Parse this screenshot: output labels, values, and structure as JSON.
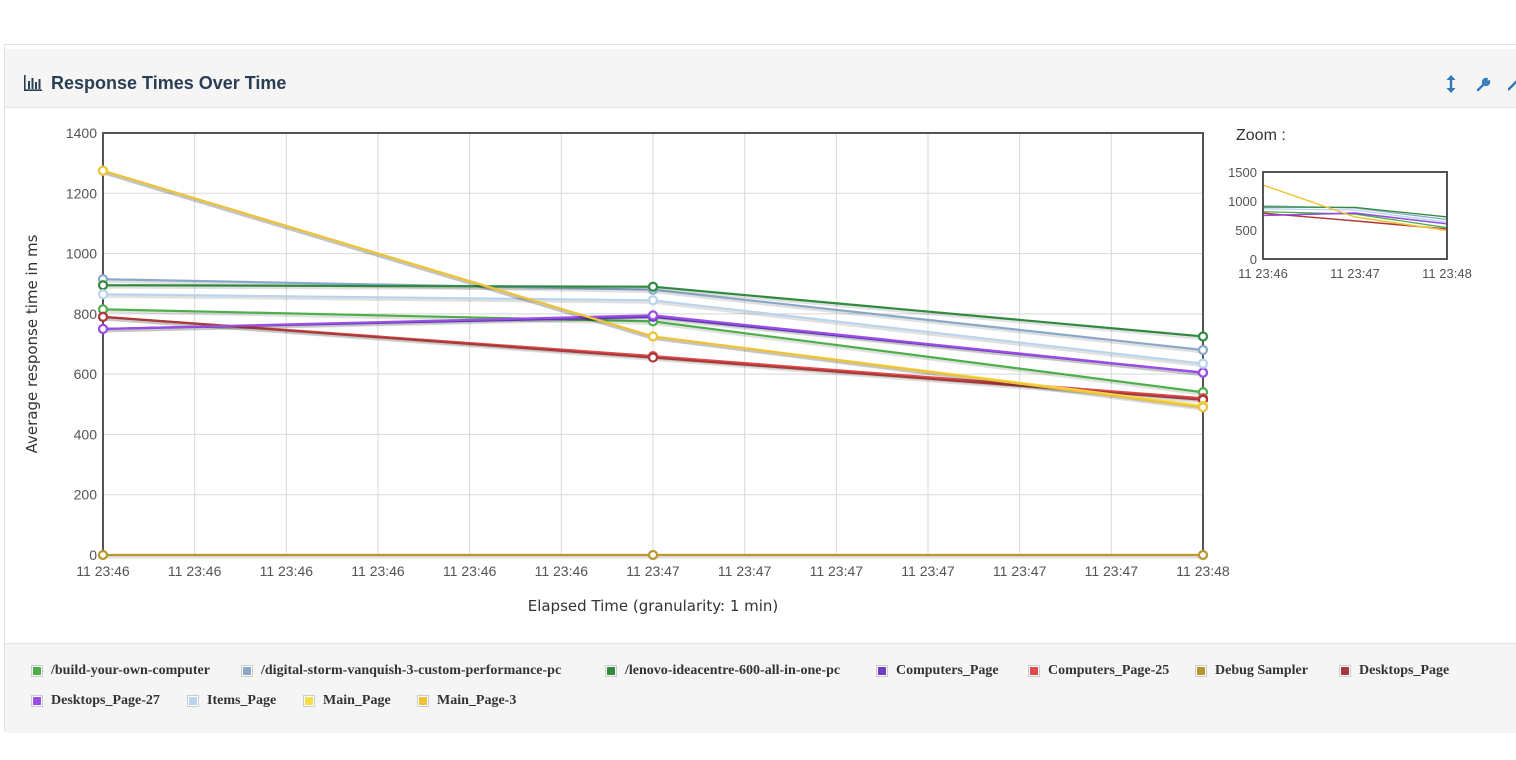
{
  "panel": {
    "title": "Response Times Over Time",
    "title_icon": "bar-chart-icon",
    "tools": [
      {
        "name": "resize-vertical-icon",
        "glyph": "↕"
      },
      {
        "name": "wrench-icon",
        "glyph": "🔧"
      },
      {
        "name": "collapse-icon",
        "glyph": "↗"
      }
    ]
  },
  "zoom": {
    "label": "Zoom :"
  },
  "chart_data": [
    {
      "type": "line",
      "title": "",
      "xlabel": "Elapsed Time (granularity: 1 min)",
      "ylabel": "Average response time in ms",
      "ylim": [
        0,
        1400
      ],
      "yticks": [
        0,
        200,
        400,
        600,
        800,
        1000,
        1200,
        1400
      ],
      "x": [
        "11 23:46",
        "11 23:47",
        "11 23:48"
      ],
      "xtick_labels": [
        "11 23:46",
        "11 23:46",
        "11 23:46",
        "11 23:46",
        "11 23:46",
        "11 23:46",
        "11 23:47",
        "11 23:47",
        "11 23:47",
        "11 23:47",
        "11 23:47",
        "11 23:47",
        "11 23:48"
      ],
      "grid": true,
      "legend_position": "bottom",
      "series": [
        {
          "name": "/build-your-own-computer",
          "color": "#4daf4a",
          "values": [
            815,
            775,
            540
          ]
        },
        {
          "name": "/digital-storm-vanquish-3-custom-performance-pc",
          "color": "#8aa9c9",
          "values": [
            915,
            880,
            680
          ]
        },
        {
          "name": "/lenovo-ideacentre-600-all-in-one-pc",
          "color": "#2f8a3e",
          "values": [
            895,
            890,
            725
          ]
        },
        {
          "name": "Computers_Page",
          "color": "#6a3fc4",
          "values": [
            750,
            790,
            605
          ]
        },
        {
          "name": "Computers_Page-25",
          "color": "#e04a4a",
          "values": [
            790,
            660,
            520
          ]
        },
        {
          "name": "Debug Sampler",
          "color": "#b8962e",
          "values": [
            0,
            0,
            0
          ]
        },
        {
          "name": "Desktops_Page",
          "color": "#a83a3a",
          "values": [
            790,
            655,
            515
          ]
        },
        {
          "name": "Desktops_Page-27",
          "color": "#9b4de8",
          "values": [
            750,
            795,
            605
          ]
        },
        {
          "name": "Items_Page",
          "color": "#b8d4ee",
          "values": [
            865,
            845,
            635
          ]
        },
        {
          "name": "Main_Page",
          "color": "#f5de4a",
          "values": [
            1275,
            725,
            495
          ]
        },
        {
          "name": "Main_Page-3",
          "color": "#ecc33a",
          "values": [
            1275,
            725,
            490
          ]
        }
      ]
    },
    {
      "type": "line",
      "title": "",
      "ylim": [
        0,
        1500
      ],
      "yticks": [
        0,
        500,
        1000,
        1500
      ],
      "x": [
        "11 23:46",
        "11 23:47",
        "11 23:48"
      ],
      "xtick_labels": [
        "11 23:46",
        "11 23:47",
        "11 23:48"
      ],
      "grid": false,
      "series_ref": "same as main chart"
    }
  ]
}
